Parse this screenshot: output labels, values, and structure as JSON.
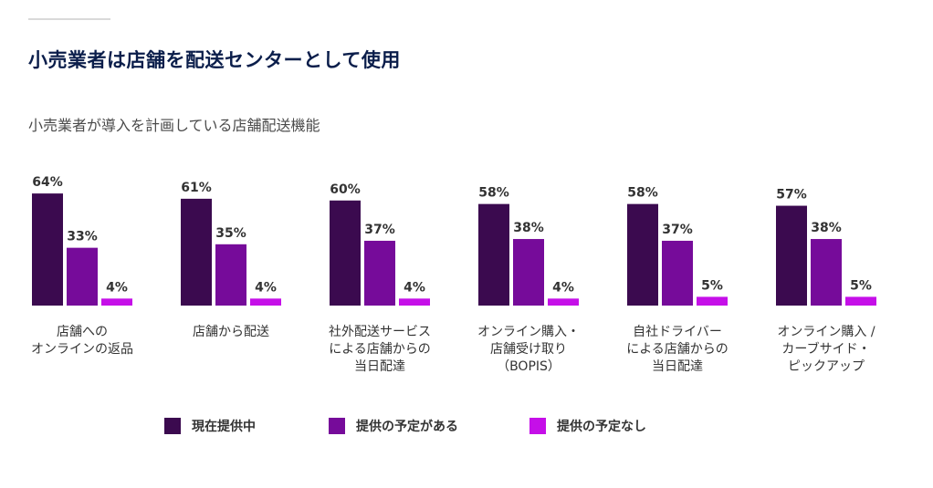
{
  "page": {
    "title": "小売業者は店舗を配送センターとして使用",
    "subtitle": "小売業者が導入を計画している店舗配送機能"
  },
  "colors": {
    "title": "#0b1e4b",
    "current": "#3b0a4f",
    "planned": "#760b9a",
    "not_planned": "#c50fe8",
    "label_text": "#333333"
  },
  "chart_data": {
    "type": "bar",
    "title": "",
    "xlabel": "",
    "ylabel": "",
    "ylim": [
      0,
      70
    ],
    "grid": false,
    "legend_position": "bottom",
    "value_suffix": "%",
    "categories": [
      [
        "店舗への",
        "オンラインの返品"
      ],
      [
        "店舗から配送"
      ],
      [
        "社外配送サービス",
        "による店舗からの",
        "当日配達"
      ],
      [
        "オンライン購入・",
        "店舗受け取り",
        "（BOPIS）"
      ],
      [
        "自社ドライバー",
        "による店舗からの",
        "当日配達"
      ],
      [
        "オンライン購入 /",
        "カーブサイド・",
        "ピックアップ"
      ]
    ],
    "series": [
      {
        "name": "現在提供中",
        "color": "#3b0a4f",
        "values": [
          64,
          61,
          60,
          58,
          58,
          57
        ]
      },
      {
        "name": "提供の予定がある",
        "color": "#760b9a",
        "values": [
          33,
          35,
          37,
          38,
          37,
          38
        ]
      },
      {
        "name": "提供の予定なし",
        "color": "#c50fe8",
        "values": [
          4,
          4,
          4,
          4,
          5,
          5
        ]
      }
    ]
  }
}
